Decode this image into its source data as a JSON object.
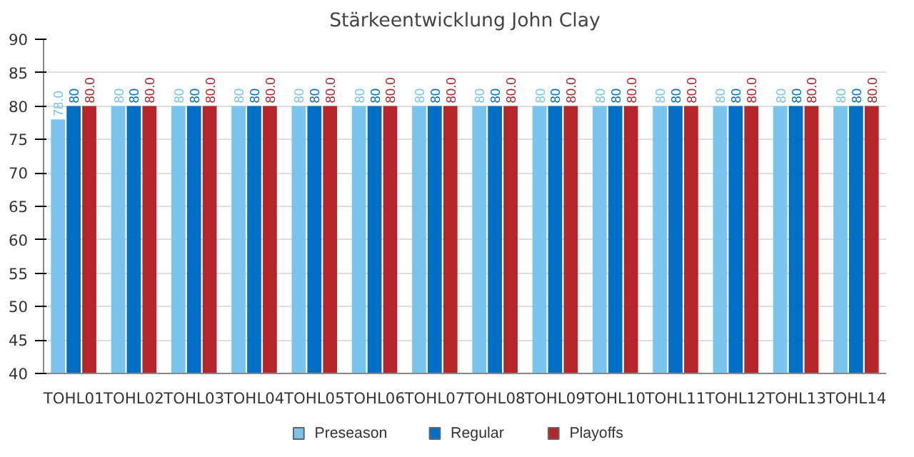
{
  "chart_data": {
    "type": "bar",
    "title": "Stärkeentwicklung John Clay",
    "categories": [
      "TOHL01",
      "TOHL02",
      "TOHL03",
      "TOHL04",
      "TOHL05",
      "TOHL06",
      "TOHL07",
      "TOHL08",
      "TOHL09",
      "TOHL10",
      "TOHL11",
      "TOHL12",
      "TOHL13",
      "TOHL14"
    ],
    "series": [
      {
        "name": "Preseason",
        "color": "#78c4ee",
        "values": [
          78,
          80,
          80,
          80,
          80,
          80,
          80,
          80,
          80,
          80,
          80,
          80,
          80,
          80
        ],
        "value_labels": [
          "78.0",
          "80",
          "80",
          "80",
          "80",
          "80",
          "80",
          "80",
          "80",
          "80",
          "80",
          "80",
          "80",
          "80"
        ]
      },
      {
        "name": "Regular",
        "color": "#0070c6",
        "values": [
          80,
          80,
          80,
          80,
          80,
          80,
          80,
          80,
          80,
          80,
          80,
          80,
          80,
          80
        ],
        "value_labels": [
          "80",
          "80",
          "80",
          "80",
          "80",
          "80",
          "80",
          "80",
          "80",
          "80",
          "80",
          "80",
          "80",
          "80"
        ]
      },
      {
        "name": "Playoffs",
        "color": "#b5262a",
        "values": [
          80,
          80,
          80,
          80,
          80,
          80,
          80,
          80,
          80,
          80,
          80,
          80,
          80,
          80
        ],
        "value_labels": [
          "80.0",
          "80.0",
          "80.0",
          "80.0",
          "80.0",
          "80.0",
          "80.0",
          "80.0",
          "80.0",
          "80.0",
          "80.0",
          "80.0",
          "80.0",
          "80.0"
        ]
      }
    ],
    "ylim": [
      40,
      90
    ],
    "yticks": [
      40,
      45,
      50,
      55,
      60,
      65,
      70,
      75,
      80,
      85,
      90
    ],
    "grid": "y",
    "legend": "bottom"
  }
}
